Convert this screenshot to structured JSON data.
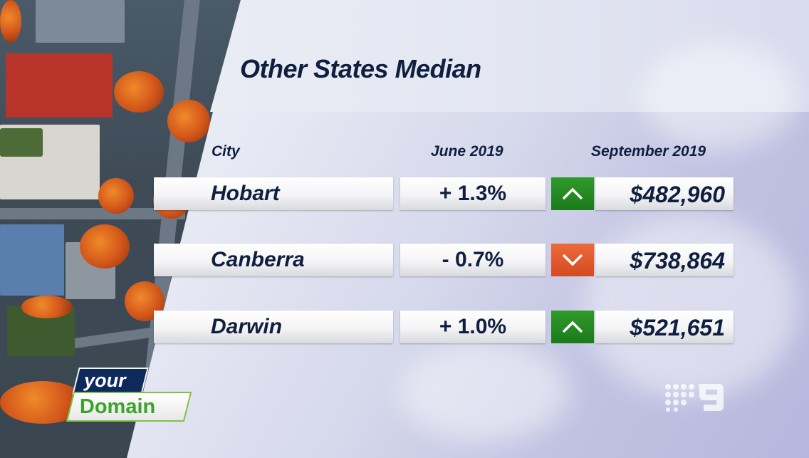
{
  "title": "Other States Median",
  "columns": {
    "city": "City",
    "june": "June 2019",
    "september": "September 2019"
  },
  "rows": [
    {
      "city": "Hobart",
      "change": "+ 1.3%",
      "trend": "up",
      "price": "$482,960"
    },
    {
      "city": "Canberra",
      "change": "- 0.7%",
      "trend": "down",
      "price": "$738,864"
    },
    {
      "city": "Darwin",
      "change": "+ 1.0%",
      "trend": "up",
      "price": "$521,651"
    }
  ],
  "logo": {
    "line1": "your",
    "line2": "Domain"
  },
  "colors": {
    "up": "#1c7a1a",
    "down": "#d44a22",
    "title_text": "#0e1f3f",
    "logo_navy": "#0e2a5c",
    "logo_green": "#3aa42a"
  },
  "icons": {
    "up": "chevron-up-icon",
    "down": "chevron-down-icon",
    "network": "channel-nine-logo"
  }
}
